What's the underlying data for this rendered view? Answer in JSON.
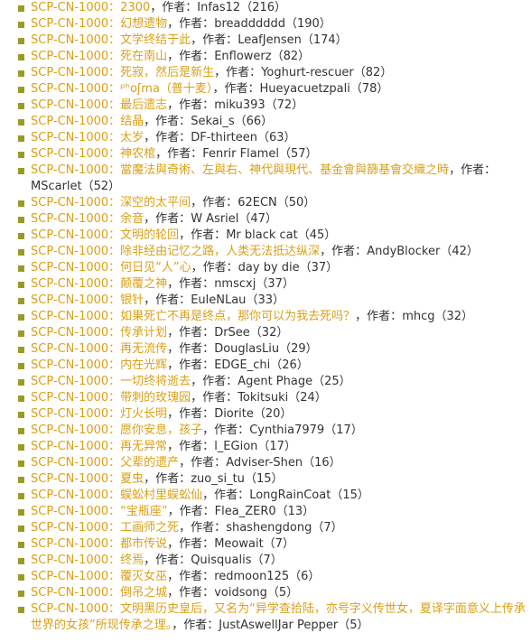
{
  "entries": [
    {
      "prefix": "SCP-CN-1000：",
      "title": "2300",
      "sep": "，作者：",
      "author": "Infas12",
      "count": "（216）"
    },
    {
      "prefix": "SCP-CN-1000：",
      "title": "幻想遗物",
      "sep": "，作者：",
      "author": "breadddddd",
      "count": "（190）"
    },
    {
      "prefix": "SCP-CN-1000：",
      "title": "文学终结于此",
      "sep": "，作者：",
      "author": "LeafJensen",
      "count": "（174）"
    },
    {
      "prefix": "SCP-CN-1000：",
      "title": "死在南山",
      "sep": "，作者：",
      "author": "Enflowerz",
      "count": "（82）"
    },
    {
      "prefix": "SCP-CN-1000：",
      "title": "死寂，然后是新生",
      "sep": "，作者：",
      "author": "Yoghurt-rescuer",
      "count": "（82）"
    },
    {
      "prefix": "SCP-CN-1000：",
      "title": "ᵖʰoʃma（普十麦）",
      "sep": "，作者：",
      "author": "Hueyacuetzpali",
      "count": "（78）"
    },
    {
      "prefix": "SCP-CN-1000：",
      "title": "最后遗志",
      "sep": "，作者：",
      "author": "miku393",
      "count": "（72）"
    },
    {
      "prefix": "SCP-CN-1000：",
      "title": "结晶",
      "sep": "，作者：",
      "author": "Sekai_s",
      "count": "（66）"
    },
    {
      "prefix": "SCP-CN-1000：",
      "title": "太岁",
      "sep": "，作者：",
      "author": "DF-thirteen",
      "count": "（63）"
    },
    {
      "prefix": "SCP-CN-1000：",
      "title": "神农棺",
      "sep": "，作者：",
      "author": "Fenrir Flamel",
      "count": "（57）"
    },
    {
      "prefix": "SCP-CN-1000：",
      "title": "當魔法與奇術、左與右、神代與現代、基金會與篩基會交織之時",
      "sep": "，作者：",
      "author": "MScarlet",
      "count": "（52）"
    },
    {
      "prefix": "SCP-CN-1000：",
      "title": "深空的太平间",
      "sep": "，作者：",
      "author": "62ECN",
      "count": "（50）"
    },
    {
      "prefix": "SCP-CN-1000：",
      "title": "余音",
      "sep": "，作者：",
      "author": "W Asriel",
      "count": "（47）"
    },
    {
      "prefix": "SCP-CN-1000：",
      "title": "文明的轮回",
      "sep": "，作者：",
      "author": "Mr black cat",
      "count": "（45）"
    },
    {
      "prefix": "SCP-CN-1000：",
      "title": "除非经由记忆之路，人类无法抵达纵深",
      "sep": "，作者：",
      "author": "AndyBlocker",
      "count": "（42）"
    },
    {
      "prefix": "SCP-CN-1000：",
      "title": "何日见“人”心",
      "sep": "，作者：",
      "author": "day by die",
      "count": "（37）"
    },
    {
      "prefix": "SCP-CN-1000：",
      "title": "颠覆之神",
      "sep": "，作者：",
      "author": "nmscxj",
      "count": "（37）"
    },
    {
      "prefix": "SCP-CN-1000：",
      "title": "银针",
      "sep": "，作者：",
      "author": "EuleNLau",
      "count": "（33）"
    },
    {
      "prefix": "SCP-CN-1000：",
      "title": "如果死亡不再是终点，那你可以为我去死吗？",
      "sep": "，作者：",
      "author": "mhcg",
      "count": "（32）"
    },
    {
      "prefix": "SCP-CN-1000：",
      "title": "传承计划",
      "sep": "，作者：",
      "author": "DrSee",
      "count": "（32）"
    },
    {
      "prefix": "SCP-CN-1000：",
      "title": "再无流传",
      "sep": "，作者：",
      "author": "DouglasLiu",
      "count": "（29）"
    },
    {
      "prefix": "SCP-CN-1000：",
      "title": "内在光辉",
      "sep": "，作者：",
      "author": "EDGE_chi",
      "count": "（26）"
    },
    {
      "prefix": "SCP-CN-1000：",
      "title": "一切终将逝去",
      "sep": "，作者：",
      "author": "Agent Phage",
      "count": "（25）"
    },
    {
      "prefix": "SCP-CN-1000：",
      "title": "带刺的玫瑰园",
      "sep": "，作者：",
      "author": "Tokitsuki",
      "count": "（24）"
    },
    {
      "prefix": "SCP-CN-1000：",
      "title": "灯火长明",
      "sep": "，作者：",
      "author": "Diorite",
      "count": "（20）"
    },
    {
      "prefix": "SCP-CN-1000：",
      "title": "愿你安息，孩子",
      "sep": "，作者：",
      "author": "Cynthia7979",
      "count": "（17）"
    },
    {
      "prefix": "SCP-CN-1000：",
      "title": "再无异常",
      "sep": "，作者：",
      "author": "l_EGion",
      "count": "（17）"
    },
    {
      "prefix": "SCP-CN-1000：",
      "title": "父辈的遗产",
      "sep": "，作者：",
      "author": "Adviser-Shen",
      "count": "（16）"
    },
    {
      "prefix": "SCP-CN-1000：",
      "title": "夏虫",
      "sep": "，作者：",
      "author": "zuo_si_tu",
      "count": "（15）"
    },
    {
      "prefix": "SCP-CN-1000：",
      "title": "蜈蚣村里蜈蚣仙",
      "sep": "，作者：",
      "author": "LongRainCoat",
      "count": "（15）"
    },
    {
      "prefix": "SCP-CN-1000：",
      "title": "“宝瓶座”",
      "sep": "，作者：",
      "author": "Flea_ZER0",
      "count": "（13）"
    },
    {
      "prefix": "SCP-CN-1000：",
      "title": "工画师之死",
      "sep": "，作者：",
      "author": "shashengdong",
      "count": "（7）"
    },
    {
      "prefix": "SCP-CN-1000：",
      "title": "都市传说",
      "sep": "，作者：",
      "author": "Meowait",
      "count": "（7）"
    },
    {
      "prefix": "SCP-CN-1000：",
      "title": "终焉",
      "sep": "，作者：",
      "author": "Quisqualis",
      "count": "（7）"
    },
    {
      "prefix": "SCP-CN-1000：",
      "title": "覆灭女巫",
      "sep": "，作者：",
      "author": "redmoon125",
      "count": "（6）"
    },
    {
      "prefix": "SCP-CN-1000：",
      "title": "倒吊之城",
      "sep": "，作者：",
      "author": "voidsong",
      "count": "（5）"
    },
    {
      "prefix": "SCP-CN-1000：",
      "title": "文明黑历史皇后，又名为“异学查拾陆，亦号字义传世女，夏译字面意义上传承世界的女孩”所现传承之理。",
      "sep": "，作者：",
      "author": "JustAswellJar Pepper",
      "count": "（5）"
    }
  ],
  "colors": {
    "link": "#d9a017",
    "text": "#333333",
    "bullet": "#9a9a27"
  }
}
